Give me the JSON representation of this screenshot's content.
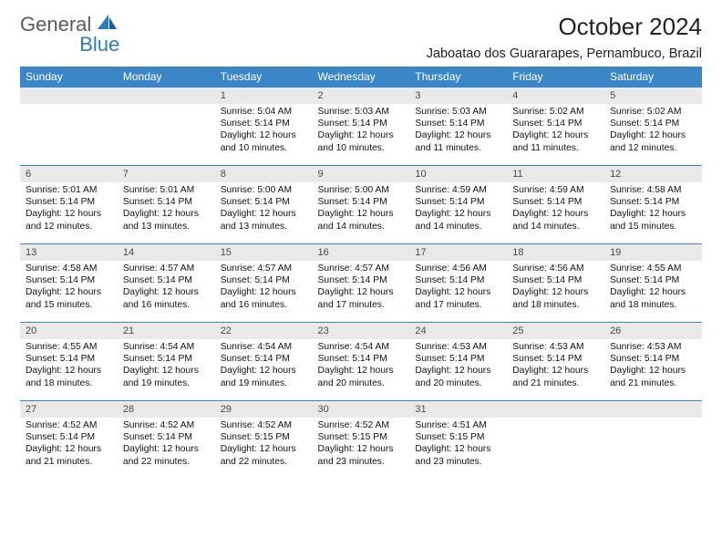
{
  "brand": {
    "word1": "General",
    "word2": "Blue"
  },
  "title": "October 2024",
  "location": "Jaboatao dos Guararapes, Pernambuco, Brazil",
  "colors": {
    "header_bg": "#3b86c6",
    "header_text": "#ffffff",
    "daynum_bg": "#e9e9e9",
    "rule": "#3b86c6",
    "logo_gray": "#5a5a5a",
    "logo_blue": "#2f7bbf"
  },
  "fonts": {
    "title_size_pt": 20,
    "location_size_pt": 11,
    "dayheader_size_pt": 9,
    "daynum_size_pt": 8,
    "body_size_pt": 7.5
  },
  "day_headers": [
    "Sunday",
    "Monday",
    "Tuesday",
    "Wednesday",
    "Thursday",
    "Friday",
    "Saturday"
  ],
  "weeks": [
    [
      null,
      null,
      {
        "n": "1",
        "sr": "Sunrise: 5:04 AM",
        "ss": "Sunset: 5:14 PM",
        "dl": "Daylight: 12 hours and 10 minutes."
      },
      {
        "n": "2",
        "sr": "Sunrise: 5:03 AM",
        "ss": "Sunset: 5:14 PM",
        "dl": "Daylight: 12 hours and 10 minutes."
      },
      {
        "n": "3",
        "sr": "Sunrise: 5:03 AM",
        "ss": "Sunset: 5:14 PM",
        "dl": "Daylight: 12 hours and 11 minutes."
      },
      {
        "n": "4",
        "sr": "Sunrise: 5:02 AM",
        "ss": "Sunset: 5:14 PM",
        "dl": "Daylight: 12 hours and 11 minutes."
      },
      {
        "n": "5",
        "sr": "Sunrise: 5:02 AM",
        "ss": "Sunset: 5:14 PM",
        "dl": "Daylight: 12 hours and 12 minutes."
      }
    ],
    [
      {
        "n": "6",
        "sr": "Sunrise: 5:01 AM",
        "ss": "Sunset: 5:14 PM",
        "dl": "Daylight: 12 hours and 12 minutes."
      },
      {
        "n": "7",
        "sr": "Sunrise: 5:01 AM",
        "ss": "Sunset: 5:14 PM",
        "dl": "Daylight: 12 hours and 13 minutes."
      },
      {
        "n": "8",
        "sr": "Sunrise: 5:00 AM",
        "ss": "Sunset: 5:14 PM",
        "dl": "Daylight: 12 hours and 13 minutes."
      },
      {
        "n": "9",
        "sr": "Sunrise: 5:00 AM",
        "ss": "Sunset: 5:14 PM",
        "dl": "Daylight: 12 hours and 14 minutes."
      },
      {
        "n": "10",
        "sr": "Sunrise: 4:59 AM",
        "ss": "Sunset: 5:14 PM",
        "dl": "Daylight: 12 hours and 14 minutes."
      },
      {
        "n": "11",
        "sr": "Sunrise: 4:59 AM",
        "ss": "Sunset: 5:14 PM",
        "dl": "Daylight: 12 hours and 14 minutes."
      },
      {
        "n": "12",
        "sr": "Sunrise: 4:58 AM",
        "ss": "Sunset: 5:14 PM",
        "dl": "Daylight: 12 hours and 15 minutes."
      }
    ],
    [
      {
        "n": "13",
        "sr": "Sunrise: 4:58 AM",
        "ss": "Sunset: 5:14 PM",
        "dl": "Daylight: 12 hours and 15 minutes."
      },
      {
        "n": "14",
        "sr": "Sunrise: 4:57 AM",
        "ss": "Sunset: 5:14 PM",
        "dl": "Daylight: 12 hours and 16 minutes."
      },
      {
        "n": "15",
        "sr": "Sunrise: 4:57 AM",
        "ss": "Sunset: 5:14 PM",
        "dl": "Daylight: 12 hours and 16 minutes."
      },
      {
        "n": "16",
        "sr": "Sunrise: 4:57 AM",
        "ss": "Sunset: 5:14 PM",
        "dl": "Daylight: 12 hours and 17 minutes."
      },
      {
        "n": "17",
        "sr": "Sunrise: 4:56 AM",
        "ss": "Sunset: 5:14 PM",
        "dl": "Daylight: 12 hours and 17 minutes."
      },
      {
        "n": "18",
        "sr": "Sunrise: 4:56 AM",
        "ss": "Sunset: 5:14 PM",
        "dl": "Daylight: 12 hours and 18 minutes."
      },
      {
        "n": "19",
        "sr": "Sunrise: 4:55 AM",
        "ss": "Sunset: 5:14 PM",
        "dl": "Daylight: 12 hours and 18 minutes."
      }
    ],
    [
      {
        "n": "20",
        "sr": "Sunrise: 4:55 AM",
        "ss": "Sunset: 5:14 PM",
        "dl": "Daylight: 12 hours and 18 minutes."
      },
      {
        "n": "21",
        "sr": "Sunrise: 4:54 AM",
        "ss": "Sunset: 5:14 PM",
        "dl": "Daylight: 12 hours and 19 minutes."
      },
      {
        "n": "22",
        "sr": "Sunrise: 4:54 AM",
        "ss": "Sunset: 5:14 PM",
        "dl": "Daylight: 12 hours and 19 minutes."
      },
      {
        "n": "23",
        "sr": "Sunrise: 4:54 AM",
        "ss": "Sunset: 5:14 PM",
        "dl": "Daylight: 12 hours and 20 minutes."
      },
      {
        "n": "24",
        "sr": "Sunrise: 4:53 AM",
        "ss": "Sunset: 5:14 PM",
        "dl": "Daylight: 12 hours and 20 minutes."
      },
      {
        "n": "25",
        "sr": "Sunrise: 4:53 AM",
        "ss": "Sunset: 5:14 PM",
        "dl": "Daylight: 12 hours and 21 minutes."
      },
      {
        "n": "26",
        "sr": "Sunrise: 4:53 AM",
        "ss": "Sunset: 5:14 PM",
        "dl": "Daylight: 12 hours and 21 minutes."
      }
    ],
    [
      {
        "n": "27",
        "sr": "Sunrise: 4:52 AM",
        "ss": "Sunset: 5:14 PM",
        "dl": "Daylight: 12 hours and 21 minutes."
      },
      {
        "n": "28",
        "sr": "Sunrise: 4:52 AM",
        "ss": "Sunset: 5:14 PM",
        "dl": "Daylight: 12 hours and 22 minutes."
      },
      {
        "n": "29",
        "sr": "Sunrise: 4:52 AM",
        "ss": "Sunset: 5:15 PM",
        "dl": "Daylight: 12 hours and 22 minutes."
      },
      {
        "n": "30",
        "sr": "Sunrise: 4:52 AM",
        "ss": "Sunset: 5:15 PM",
        "dl": "Daylight: 12 hours and 23 minutes."
      },
      {
        "n": "31",
        "sr": "Sunrise: 4:51 AM",
        "ss": "Sunset: 5:15 PM",
        "dl": "Daylight: 12 hours and 23 minutes."
      },
      null,
      null
    ]
  ]
}
